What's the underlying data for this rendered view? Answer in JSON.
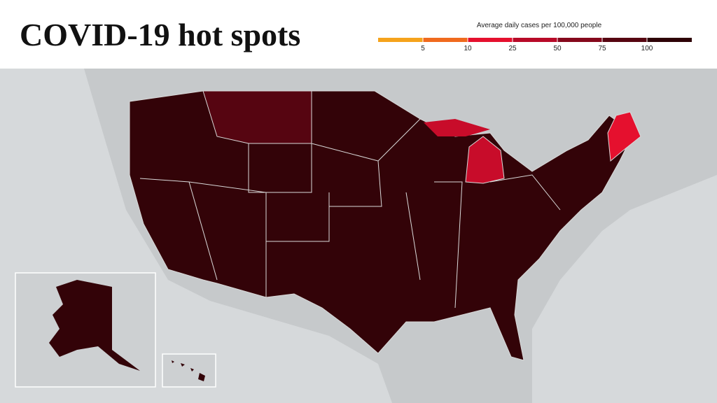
{
  "header": {
    "title": "COVID-19 hot spots"
  },
  "legend": {
    "title": "Average daily cases per 100,000 people",
    "ticks": [
      5,
      10,
      25,
      50,
      75,
      100
    ],
    "colors": [
      "#f5a31c",
      "#f06a1e",
      "#e5102e",
      "#b80a28",
      "#85081c",
      "#560511",
      "#2e0207"
    ]
  }
}
